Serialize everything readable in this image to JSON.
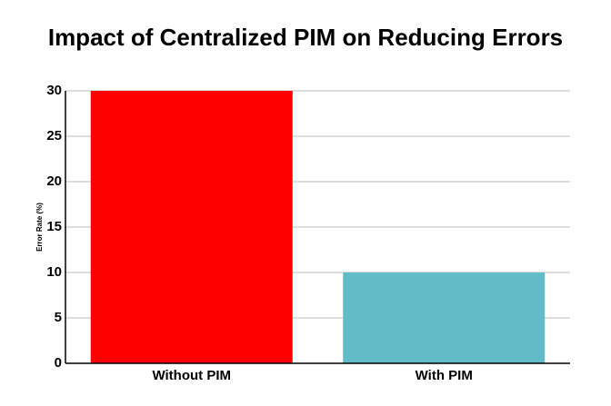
{
  "chart_data": {
    "type": "bar",
    "title": "Impact of Centralized PIM on Reducing Errors",
    "y_label": "Error Rate (%)",
    "categories": [
      "Without PIM",
      "With PIM"
    ],
    "values": [
      30,
      10
    ],
    "colors": [
      "#ff0000",
      "#62bcc8"
    ],
    "ylim": [
      0,
      30
    ],
    "yticks": [
      0,
      5,
      10,
      15,
      20,
      25,
      30
    ],
    "grid": true
  }
}
